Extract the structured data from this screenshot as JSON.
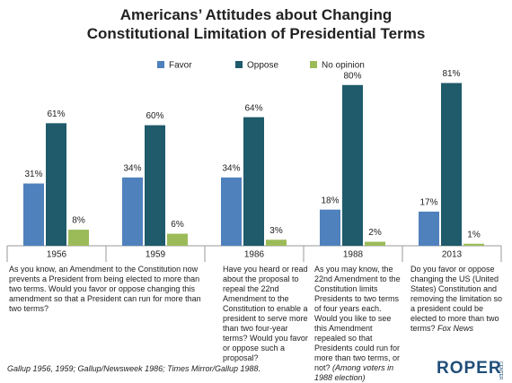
{
  "chart_data": {
    "type": "bar",
    "title": "Americans’ Attitudes about Changing Constitutional Limitation of Presidential Terms",
    "categories": [
      "1956",
      "1959",
      "1986",
      "1988",
      "2013"
    ],
    "series": [
      {
        "name": "Favor",
        "color": "#4f81bd",
        "values": [
          31,
          34,
          34,
          18,
          17
        ],
        "value_labels": [
          "31%",
          "34%",
          "34%",
          "18%",
          "17%"
        ]
      },
      {
        "name": "Oppose",
        "color": "#1f5b6b",
        "values": [
          61,
          60,
          64,
          80,
          81
        ],
        "value_labels": [
          "61%",
          "60%",
          "64%",
          "80%",
          "81%"
        ]
      },
      {
        "name": "No opinion",
        "color": "#9bbb59",
        "values": [
          8,
          6,
          3,
          2,
          1
        ],
        "value_labels": [
          "8%",
          "6%",
          "3%",
          "2%",
          "1%"
        ]
      }
    ],
    "questions": [
      {
        "text": "As you know, an Amendment to the Constitution now prevents a President from being elected to more than two terms. Would you favor or oppose changing this amendment so that a President can run for more than two terms?"
      },
      {
        "text": "Have you heard or read about the proposal to repeal the 22nd Amendment to the Constitution to enable a president to serve more than two four-year terms? Would you favor or oppose such a proposal?"
      },
      {
        "text": "As you may know, the 22nd Amendment to the Constitution limits Presidents to two terms of four years each. Would you like to see this Amendment repealed so that Presidents could run for more than two terms, or not?",
        "note": "(Among voters in 1988 election)"
      },
      {
        "text": "Do you favor or oppose changing the US (United States) Constitution and removing the limitation so a president could be elected to more than two terms?",
        "note": "Fox News"
      }
    ],
    "source": "Gallup 1956, 1959; Gallup/Newsweek 1986; Times Mirror/Gallup 1988.",
    "logo": "ROPER",
    "logo_sub": "CENTER"
  }
}
